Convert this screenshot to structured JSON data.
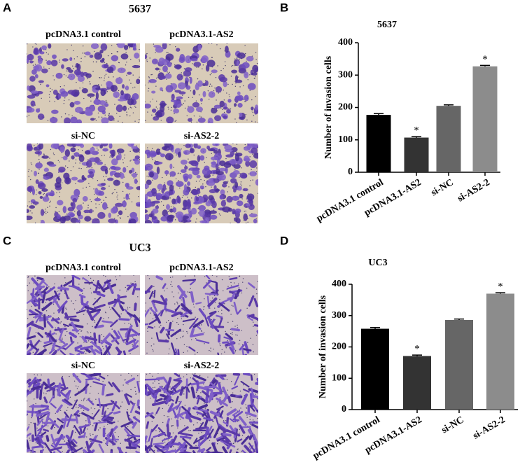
{
  "panels": [
    {
      "letter": "A",
      "title": "5637",
      "images": [
        "pcDNA3.1 control",
        "pcDNA3.1-AS2",
        "si-NC",
        "si-AS2-2"
      ]
    },
    {
      "letter": "B"
    },
    {
      "letter": "C",
      "title": "UC3",
      "images": [
        "pcDNA3.1 control",
        "pcDNA3.1-AS2",
        "si-NC",
        "si-AS2-2"
      ]
    },
    {
      "letter": "D"
    }
  ],
  "chart_data": [
    {
      "type": "bar",
      "title": "5637",
      "y_label": "Number of invasion cells",
      "categories": [
        "pcDNA3.1 control",
        "pcDNA3.1-AS2",
        "si-NC",
        "si-AS2-2"
      ],
      "values": [
        177,
        107,
        205,
        327
      ],
      "errors": [
        4,
        3,
        3,
        3
      ],
      "annotations": [
        null,
        "*",
        null,
        "*"
      ],
      "colors": [
        "#000000",
        "#333333",
        "#666666",
        "#8c8c8c"
      ],
      "ylim": [
        0,
        400
      ],
      "yticks": [
        0,
        100,
        200,
        300,
        400
      ]
    },
    {
      "type": "bar",
      "title": "UC3",
      "y_label": "Number of invasion cells",
      "categories": [
        "pcDNA3.1 control",
        "pcDNA3.1-AS2",
        "si-NC",
        "si-AS2-2"
      ],
      "values": [
        258,
        171,
        286,
        370
      ],
      "errors": [
        4,
        3,
        3,
        3
      ],
      "annotations": [
        null,
        "*",
        null,
        "*"
      ],
      "colors": [
        "#000000",
        "#333333",
        "#666666",
        "#8c8c8c"
      ],
      "ylim": [
        0,
        400
      ],
      "yticks": [
        0,
        100,
        200,
        300,
        400
      ]
    }
  ]
}
